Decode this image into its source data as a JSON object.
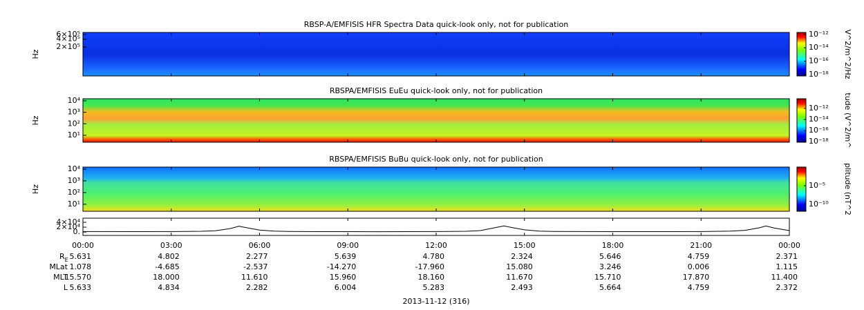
{
  "chart_data": [
    {
      "type": "spectrogram",
      "title": "RBSP-A/EMFISIS  HFR Spectra Data quick-look only, not for publication",
      "ylabel": "Hz",
      "log": true,
      "ylim": [
        16000,
        720000
      ],
      "yticks": [
        {
          "value": 600000,
          "label": "6×10⁵"
        },
        {
          "value": 400000,
          "label": "4×10⁵"
        },
        {
          "value": 200000,
          "label": "2×10⁵"
        }
      ],
      "colorbar": {
        "label": "V^2/m^2/Hz",
        "lim": [
          6e-19,
          2e-12
        ],
        "ticks": [
          {
            "value": 1e-12,
            "label": "10⁻¹²"
          },
          {
            "value": 1e-14,
            "label": "10⁻¹⁴"
          },
          {
            "value": 1e-16,
            "label": "10⁻¹⁶"
          },
          {
            "value": 1e-18,
            "label": "10⁻¹⁸"
          }
        ]
      }
    },
    {
      "type": "spectrogram",
      "title": "RBSPA/EMFISIS  EuEu quick-look only, not for publication",
      "ylabel": "Hz",
      "log": true,
      "ylim": [
        2.5,
        15000
      ],
      "yticks": [
        {
          "value": 10000,
          "label": "10⁴"
        },
        {
          "value": 1000,
          "label": "10³"
        },
        {
          "value": 100,
          "label": "10²"
        },
        {
          "value": 10,
          "label": "10¹"
        }
      ],
      "colorbar": {
        "label": "tude (V^2/m^",
        "lim": [
          8e-19,
          5.6e-11
        ],
        "ticks": [
          {
            "value": 1e-12,
            "label": "10⁻¹²"
          },
          {
            "value": 1e-14,
            "label": "10⁻¹⁴"
          },
          {
            "value": 1e-16,
            "label": "10⁻¹⁶"
          },
          {
            "value": 1e-18,
            "label": "10⁻¹⁸"
          }
        ]
      }
    },
    {
      "type": "spectrogram",
      "title": "RBSPA/EMFISIS  BuBu quick-look only, not for publication",
      "ylabel": "Hz",
      "log": true,
      "ylim": [
        2.5,
        15000
      ],
      "yticks": [
        {
          "value": 10000,
          "label": "10⁴"
        },
        {
          "value": 1000,
          "label": "10³"
        },
        {
          "value": 100,
          "label": "10²"
        },
        {
          "value": 10,
          "label": "10¹"
        }
      ],
      "colorbar": {
        "label": "plitude (nT^2",
        "lim": [
          1.4e-12,
          1
        ],
        "ticks": [
          {
            "value": 1e-05,
            "label": "10⁻⁵"
          },
          {
            "value": 1e-10,
            "label": "10⁻¹⁰"
          }
        ]
      }
    },
    {
      "type": "line",
      "color": "#000000",
      "ylim": [
        -14000,
        57000
      ],
      "yticks": [
        {
          "value": 40000,
          "label": "4×10⁴"
        },
        {
          "value": 20000,
          "label": "2×10⁴"
        },
        {
          "value": 0,
          "label": "0."
        }
      ],
      "xlim": [
        0,
        24
      ],
      "xticks": [
        {
          "value": 0,
          "label": "00:00"
        },
        {
          "value": 3,
          "label": "03:00"
        },
        {
          "value": 6,
          "label": "06:00"
        },
        {
          "value": 9,
          "label": "09:00"
        },
        {
          "value": 12,
          "label": "12:00"
        },
        {
          "value": 15,
          "label": "15:00"
        },
        {
          "value": 18,
          "label": "18:00"
        },
        {
          "value": 21,
          "label": "21:00"
        },
        {
          "value": 24,
          "label": "00:00"
        }
      ],
      "x": [
        0,
        2,
        3,
        4,
        4.5,
        5,
        5.3,
        5.6,
        6,
        6.5,
        7,
        8,
        10,
        12,
        13,
        13.5,
        14,
        14.3,
        14.6,
        15,
        15.5,
        16,
        18,
        20,
        21,
        22,
        22.5,
        23,
        23.2,
        23.5,
        24
      ],
      "values": [
        2000,
        1500,
        1800,
        3000,
        5000,
        14000,
        24000,
        17000,
        8000,
        4000,
        2500,
        1500,
        1200,
        1800,
        3000,
        6000,
        18000,
        25000,
        18000,
        9000,
        4000,
        2500,
        1500,
        1500,
        2000,
        3500,
        7000,
        18000,
        25000,
        16000,
        6000
      ]
    }
  ],
  "ephemeris": {
    "rows": [
      {
        "label": "R",
        "sub": "E",
        "values": [
          "5.631",
          "4.802",
          "2.277",
          "5.639",
          "4.780",
          "2.324",
          "5.646",
          "4.759",
          "2.371"
        ]
      },
      {
        "label": "MLat",
        "values": [
          "1.078",
          "-4.685",
          "-2.537",
          "-14.270",
          "-17.960",
          "15.080",
          "3.246",
          "0.006",
          "1.115"
        ]
      },
      {
        "label": "MLT",
        "values": [
          "15.570",
          "18.000",
          "11.610",
          "15.960",
          "18.160",
          "11.670",
          "15.710",
          "17.870",
          "11.400"
        ]
      },
      {
        "label": "L",
        "values": [
          "5.633",
          "4.834",
          "2.282",
          "6.004",
          "5.283",
          "2.493",
          "5.664",
          "4.759",
          "2.372"
        ]
      }
    ]
  },
  "date_label": "2013-11-12 (316)"
}
